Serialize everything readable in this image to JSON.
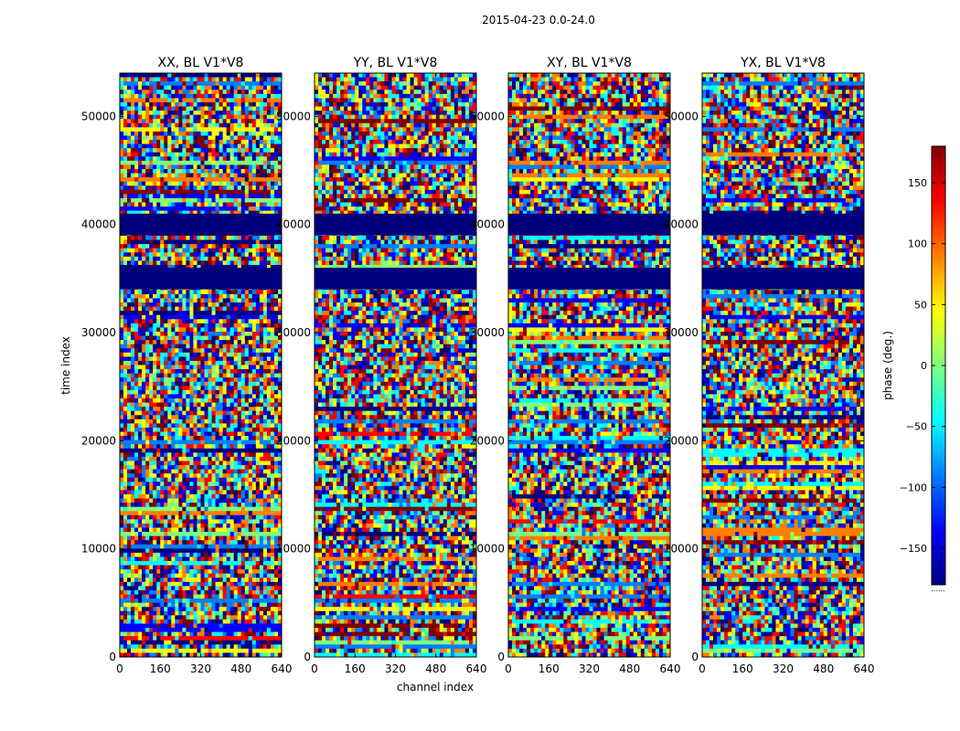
{
  "figure": {
    "suptitle": "2015-04-23 0.0-24.0"
  },
  "colors": {
    "jet": [
      "#00007f",
      "#0000ff",
      "#007fff",
      "#00ffff",
      "#7fff7f",
      "#ffff00",
      "#ff7f00",
      "#ff0000",
      "#7f0000"
    ],
    "background": "#ffffff"
  },
  "chart_data": {
    "type": "heatmap",
    "xlabel": "channel index",
    "ylabel": "time index",
    "xlim": [
      0,
      640
    ],
    "ylim": [
      0,
      54000
    ],
    "xticks": [
      0,
      160,
      320,
      480,
      640
    ],
    "yticks": [
      0,
      10000,
      20000,
      30000,
      40000,
      50000
    ],
    "panels": [
      {
        "title": "XX, BL V1*V8"
      },
      {
        "title": "YY, BL V1*V8"
      },
      {
        "title": "XY, BL V1*V8"
      },
      {
        "title": "YX, BL V1*V8"
      }
    ],
    "flagged_bands": [
      [
        34000,
        36000
      ],
      [
        39000,
        41000
      ]
    ],
    "colorbar": {
      "label": "phase (deg.)",
      "range": [
        -180,
        180
      ],
      "ticks": [
        -150,
        -100,
        -50,
        0,
        50,
        100,
        150
      ],
      "tick_labels": [
        "−150",
        "−100",
        "−50",
        "0",
        "50",
        "100",
        "150"
      ],
      "bottom_label": "......"
    }
  }
}
